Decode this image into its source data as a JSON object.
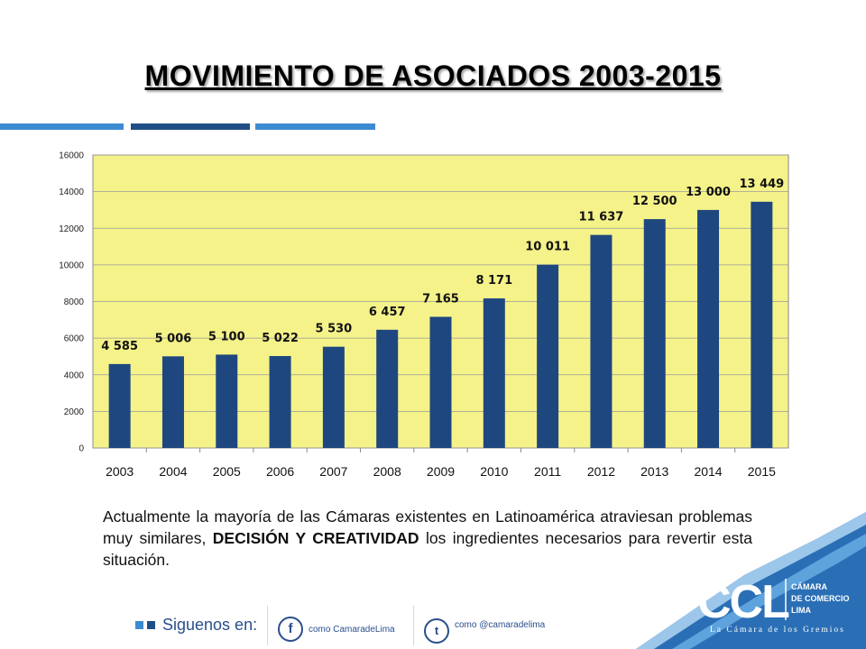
{
  "slide": {
    "title": "MOVIMIENTO DE ASOCIADOS 2003-2015",
    "paragraph_part1": "Actualmente la mayoría de las Cámaras existentes en Latinoamérica atraviesan problemas muy similares, ",
    "paragraph_bold": "DECISIÓN Y CREATIVIDAD",
    "paragraph_part2": " los ingredientes necesarios para revertir esta situación."
  },
  "footer": {
    "follow_label": "Siguenos en:",
    "facebook_text": "como CamaradeLima",
    "twitter_text": "como @camaradelima"
  },
  "logo": {
    "acronym": "CCL",
    "line1": "CÁMARA",
    "line2": "DE COMERCIO",
    "line3": "LIMA",
    "tagline": "La Cámara de los Gremios"
  },
  "colors": {
    "bar": "#1f477f",
    "plot_bg": "#f5f28a",
    "accent_light": "#3c8bd0",
    "accent_dark": "#1f4f86",
    "logo_bg": "#2a6fb6"
  },
  "chart_data": {
    "type": "bar",
    "categories": [
      "2003",
      "2004",
      "2005",
      "2006",
      "2007",
      "2008",
      "2009",
      "2010",
      "2011",
      "2012",
      "2013",
      "2014",
      "2015"
    ],
    "values": [
      4585,
      5006,
      5100,
      5022,
      5530,
      6457,
      7165,
      8171,
      10011,
      11637,
      12500,
      13000,
      13449
    ],
    "data_labels": [
      "4 585",
      "5 006",
      "5 100",
      "5 022",
      "5 530",
      "6 457",
      "7 165",
      "8 171",
      "10 011",
      "11 637",
      "12 500",
      "13 000",
      "13 449"
    ],
    "yticks": [
      "0",
      "2000",
      "4000",
      "6000",
      "8000",
      "10000",
      "12000",
      "14000",
      "16000"
    ],
    "ylim": [
      0,
      16000
    ],
    "grid": true,
    "title": "",
    "xlabel": "",
    "ylabel": ""
  }
}
